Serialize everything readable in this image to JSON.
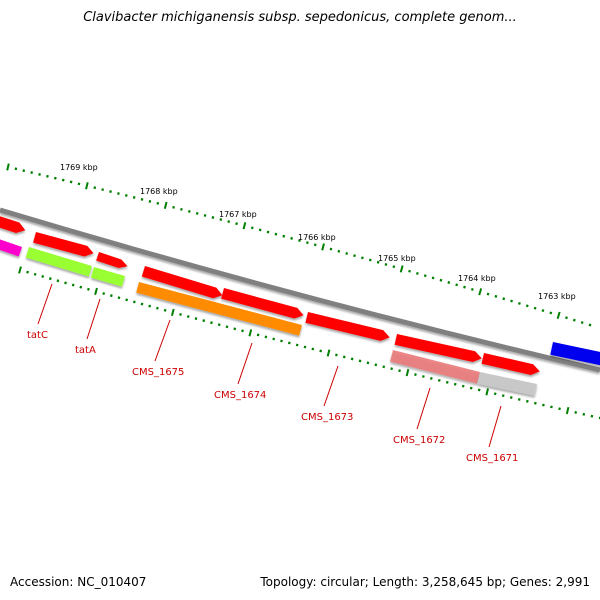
{
  "title": "Clavibacter michiganensis subsp. sepedonicus, complete genom...",
  "footer": {
    "accession": "Accession: NC_010407",
    "stats": "Topology: circular; Length: 3,258,645 bp; Genes: 2,991"
  },
  "ticks": [
    {
      "label": "1769 kbp"
    },
    {
      "label": "1768 kbp"
    },
    {
      "label": "1767 kbp"
    },
    {
      "label": "1766 kbp"
    },
    {
      "label": "1765 kbp"
    },
    {
      "label": "1764 kbp"
    },
    {
      "label": "1763 kbp"
    }
  ],
  "genes": [
    {
      "label": "tatC"
    },
    {
      "label": "tatA"
    },
    {
      "label": "CMS_1675"
    },
    {
      "label": "CMS_1674"
    },
    {
      "label": "CMS_1673"
    },
    {
      "label": "CMS_1672"
    },
    {
      "label": "CMS_1671"
    }
  ],
  "colors": {
    "forward_cds": "#ff0000",
    "reverse_cds": "#ff0000",
    "tat_genes": "#99ff33",
    "orange_gene": "#ff8c00",
    "pink_gene": "#e97a7a",
    "grey_gene": "#c8c8c8",
    "magenta_gene": "#ff00cc",
    "blue_gene": "#0000ee",
    "backbone": "#808080",
    "tick_marks": "#008000",
    "label_text": "#cc0000"
  }
}
